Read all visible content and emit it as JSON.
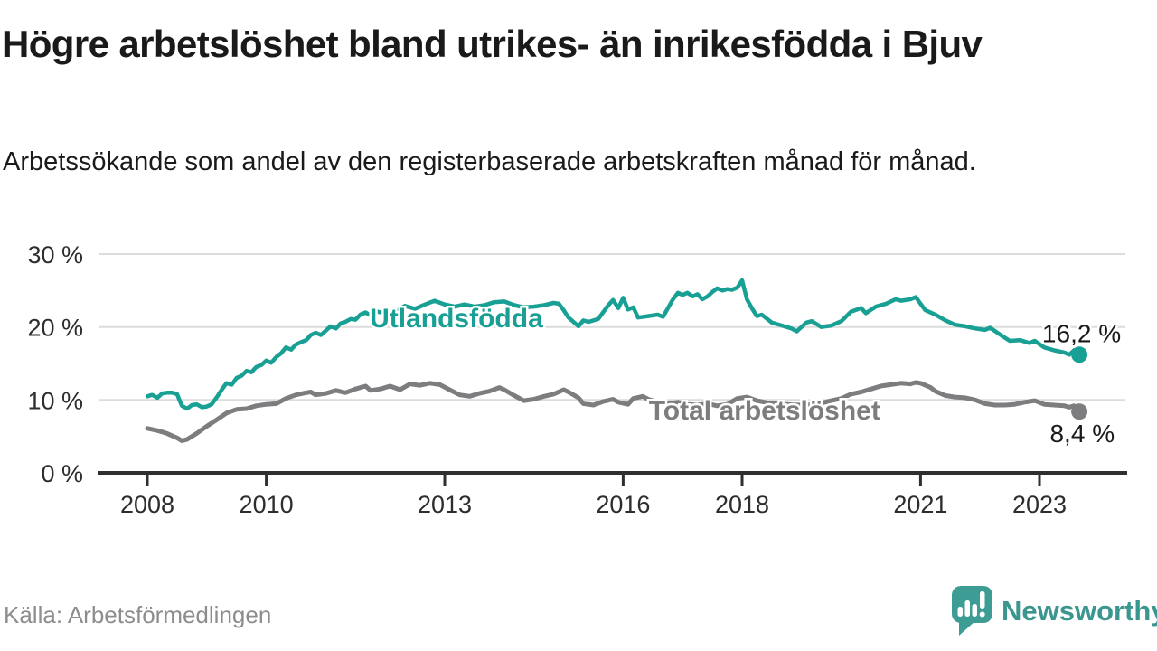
{
  "header": {
    "title": "Högre arbetslöshet bland utrikes- än inrikesfödda i Bjuv",
    "subtitle": "Arbetssökande som andel av den registerbaserade arbetskraften månad för månad."
  },
  "footer": {
    "source": "Källa: Arbetsförmedlingen",
    "brand": "Newsworthy",
    "logo_icon": "newsworthy-speech-bubble-bar-chart-icon"
  },
  "colors": {
    "series_utlandsfodda": "#18a094",
    "series_total": "#7d7d80",
    "title_text": "#1a1a1a",
    "axis_text": "#2d2d2d",
    "gridline": "#dcdcdc",
    "axis_line": "#2f2f2f",
    "source_text": "#8d8d8d",
    "brand_teal": "#3a968f"
  },
  "chart_data": {
    "type": "line",
    "unit": "%",
    "grid": "horizontal",
    "legend": "inline-labels",
    "x_range": [
      2008.0,
      2023.67
    ],
    "y_axis": {
      "range": [
        0,
        32
      ],
      "ticks": [
        {
          "value": 30,
          "label": "30 %"
        },
        {
          "value": 20,
          "label": "20 %"
        },
        {
          "value": 10,
          "label": "10 %"
        },
        {
          "value": 0,
          "label": "0 %"
        }
      ]
    },
    "x_axis": {
      "ticks": [
        {
          "x": 2008,
          "label": "2008"
        },
        {
          "x": 2010,
          "label": "2010"
        },
        {
          "x": 2013,
          "label": "2013"
        },
        {
          "x": 2016,
          "label": "2016"
        },
        {
          "x": 2018,
          "label": "2018"
        },
        {
          "x": 2021,
          "label": "2021"
        },
        {
          "x": 2023,
          "label": "2023"
        }
      ]
    },
    "series": [
      {
        "name": "utlandsfodda",
        "label": "Utlandsfödda",
        "color": "#18a094",
        "end_value": 16.2,
        "end_value_label": "16,2 %",
        "label_anchor": {
          "x": 2011.74,
          "value": 19.96
        },
        "points": [
          [
            2008.0,
            10.5
          ],
          [
            2008.08,
            10.7
          ],
          [
            2008.17,
            10.3
          ],
          [
            2008.25,
            10.9
          ],
          [
            2008.33,
            11.0
          ],
          [
            2008.42,
            11.0
          ],
          [
            2008.5,
            10.8
          ],
          [
            2008.58,
            9.2
          ],
          [
            2008.67,
            8.8
          ],
          [
            2008.75,
            9.3
          ],
          [
            2008.83,
            9.4
          ],
          [
            2008.92,
            9.0
          ],
          [
            2009.0,
            9.1
          ],
          [
            2009.08,
            9.4
          ],
          [
            2009.17,
            10.4
          ],
          [
            2009.25,
            11.4
          ],
          [
            2009.33,
            12.3
          ],
          [
            2009.42,
            12.1
          ],
          [
            2009.5,
            13.0
          ],
          [
            2009.58,
            13.3
          ],
          [
            2009.67,
            14.0
          ],
          [
            2009.75,
            13.8
          ],
          [
            2009.83,
            14.5
          ],
          [
            2009.92,
            14.8
          ],
          [
            2010.0,
            15.4
          ],
          [
            2010.08,
            15.1
          ],
          [
            2010.17,
            15.9
          ],
          [
            2010.25,
            16.4
          ],
          [
            2010.33,
            17.2
          ],
          [
            2010.42,
            16.9
          ],
          [
            2010.5,
            17.6
          ],
          [
            2010.58,
            17.9
          ],
          [
            2010.67,
            18.2
          ],
          [
            2010.75,
            18.9
          ],
          [
            2010.83,
            19.2
          ],
          [
            2010.92,
            18.9
          ],
          [
            2011.0,
            19.5
          ],
          [
            2011.08,
            20.1
          ],
          [
            2011.17,
            19.8
          ],
          [
            2011.25,
            20.5
          ],
          [
            2011.33,
            20.7
          ],
          [
            2011.42,
            21.1
          ],
          [
            2011.5,
            21.0
          ],
          [
            2011.58,
            21.7
          ],
          [
            2011.67,
            22.0
          ],
          [
            2011.75,
            21.6
          ],
          [
            2011.83,
            22.2
          ],
          [
            2011.92,
            22.0
          ],
          [
            2012.0,
            22.3
          ],
          [
            2012.17,
            22.1
          ],
          [
            2012.33,
            22.9
          ],
          [
            2012.5,
            22.5
          ],
          [
            2012.67,
            23.1
          ],
          [
            2012.83,
            23.6
          ],
          [
            2013.0,
            23.1
          ],
          [
            2013.17,
            22.8
          ],
          [
            2013.33,
            23.1
          ],
          [
            2013.5,
            22.8
          ],
          [
            2013.67,
            23.0
          ],
          [
            2013.83,
            23.4
          ],
          [
            2014.0,
            23.5
          ],
          [
            2014.17,
            23.0
          ],
          [
            2014.33,
            22.7
          ],
          [
            2014.5,
            22.8
          ],
          [
            2014.67,
            23.0
          ],
          [
            2014.83,
            23.3
          ],
          [
            2014.92,
            23.2
          ],
          [
            2015.0,
            22.3
          ],
          [
            2015.08,
            21.3
          ],
          [
            2015.25,
            20.1
          ],
          [
            2015.33,
            20.9
          ],
          [
            2015.42,
            20.7
          ],
          [
            2015.58,
            21.1
          ],
          [
            2015.75,
            23.0
          ],
          [
            2015.83,
            23.7
          ],
          [
            2015.92,
            22.6
          ],
          [
            2016.0,
            24.0
          ],
          [
            2016.08,
            22.4
          ],
          [
            2016.17,
            22.7
          ],
          [
            2016.25,
            21.3
          ],
          [
            2016.42,
            21.5
          ],
          [
            2016.58,
            21.7
          ],
          [
            2016.67,
            21.4
          ],
          [
            2016.83,
            23.7
          ],
          [
            2016.92,
            24.7
          ],
          [
            2017.0,
            24.4
          ],
          [
            2017.08,
            24.7
          ],
          [
            2017.17,
            24.2
          ],
          [
            2017.25,
            24.5
          ],
          [
            2017.33,
            23.8
          ],
          [
            2017.42,
            24.2
          ],
          [
            2017.5,
            24.8
          ],
          [
            2017.58,
            25.3
          ],
          [
            2017.67,
            25.0
          ],
          [
            2017.75,
            25.2
          ],
          [
            2017.83,
            25.1
          ],
          [
            2017.92,
            25.4
          ],
          [
            2018.0,
            26.4
          ],
          [
            2018.08,
            23.8
          ],
          [
            2018.17,
            22.5
          ],
          [
            2018.25,
            21.5
          ],
          [
            2018.33,
            21.7
          ],
          [
            2018.5,
            20.6
          ],
          [
            2018.67,
            20.2
          ],
          [
            2018.83,
            19.8
          ],
          [
            2018.92,
            19.4
          ],
          [
            2019.08,
            20.6
          ],
          [
            2019.17,
            20.8
          ],
          [
            2019.33,
            20.0
          ],
          [
            2019.5,
            20.2
          ],
          [
            2019.67,
            20.8
          ],
          [
            2019.83,
            22.1
          ],
          [
            2020.0,
            22.6
          ],
          [
            2020.08,
            21.9
          ],
          [
            2020.25,
            22.8
          ],
          [
            2020.42,
            23.2
          ],
          [
            2020.58,
            23.8
          ],
          [
            2020.67,
            23.6
          ],
          [
            2020.83,
            23.8
          ],
          [
            2020.92,
            24.1
          ],
          [
            2021.0,
            23.2
          ],
          [
            2021.08,
            22.3
          ],
          [
            2021.25,
            21.7
          ],
          [
            2021.42,
            20.9
          ],
          [
            2021.58,
            20.3
          ],
          [
            2021.75,
            20.1
          ],
          [
            2021.92,
            19.8
          ],
          [
            2022.08,
            19.6
          ],
          [
            2022.17,
            19.9
          ],
          [
            2022.33,
            19.0
          ],
          [
            2022.5,
            18.1
          ],
          [
            2022.67,
            18.2
          ],
          [
            2022.83,
            17.8
          ],
          [
            2022.92,
            18.1
          ],
          [
            2023.08,
            17.2
          ],
          [
            2023.25,
            16.8
          ],
          [
            2023.42,
            16.5
          ],
          [
            2023.5,
            16.2
          ],
          [
            2023.58,
            16.8
          ],
          [
            2023.67,
            16.2
          ]
        ]
      },
      {
        "name": "total-arbetsloshet",
        "label": "Total arbetslöshet",
        "color": "#7d7d80",
        "end_value": 8.4,
        "end_value_label": "8,4 %",
        "label_anchor": {
          "x": 2016.43,
          "value": 7.31
        },
        "points": [
          [
            2008.0,
            6.1
          ],
          [
            2008.17,
            5.8
          ],
          [
            2008.33,
            5.4
          ],
          [
            2008.5,
            4.8
          ],
          [
            2008.58,
            4.4
          ],
          [
            2008.67,
            4.6
          ],
          [
            2008.83,
            5.4
          ],
          [
            2009.0,
            6.4
          ],
          [
            2009.17,
            7.3
          ],
          [
            2009.33,
            8.2
          ],
          [
            2009.5,
            8.7
          ],
          [
            2009.67,
            8.8
          ],
          [
            2009.83,
            9.2
          ],
          [
            2010.0,
            9.4
          ],
          [
            2010.17,
            9.5
          ],
          [
            2010.33,
            10.2
          ],
          [
            2010.5,
            10.7
          ],
          [
            2010.67,
            11.0
          ],
          [
            2010.75,
            11.1
          ],
          [
            2010.83,
            10.7
          ],
          [
            2011.0,
            10.9
          ],
          [
            2011.17,
            11.3
          ],
          [
            2011.33,
            11.0
          ],
          [
            2011.5,
            11.5
          ],
          [
            2011.67,
            11.9
          ],
          [
            2011.75,
            11.3
          ],
          [
            2011.92,
            11.5
          ],
          [
            2012.08,
            11.9
          ],
          [
            2012.25,
            11.4
          ],
          [
            2012.42,
            12.2
          ],
          [
            2012.58,
            12.0
          ],
          [
            2012.75,
            12.3
          ],
          [
            2012.92,
            12.1
          ],
          [
            2013.08,
            11.4
          ],
          [
            2013.25,
            10.7
          ],
          [
            2013.42,
            10.5
          ],
          [
            2013.58,
            10.9
          ],
          [
            2013.75,
            11.2
          ],
          [
            2013.92,
            11.7
          ],
          [
            2014.0,
            11.4
          ],
          [
            2014.17,
            10.6
          ],
          [
            2014.33,
            9.9
          ],
          [
            2014.5,
            10.1
          ],
          [
            2014.67,
            10.5
          ],
          [
            2014.83,
            10.8
          ],
          [
            2015.0,
            11.4
          ],
          [
            2015.08,
            11.1
          ],
          [
            2015.25,
            10.3
          ],
          [
            2015.33,
            9.5
          ],
          [
            2015.5,
            9.3
          ],
          [
            2015.67,
            9.8
          ],
          [
            2015.83,
            10.1
          ],
          [
            2015.92,
            9.7
          ],
          [
            2016.08,
            9.4
          ],
          [
            2016.17,
            10.2
          ],
          [
            2016.33,
            10.5
          ],
          [
            2016.42,
            10.1
          ],
          [
            2016.58,
            9.7
          ],
          [
            2016.75,
            9.5
          ],
          [
            2016.92,
            9.7
          ],
          [
            2017.08,
            9.4
          ],
          [
            2017.25,
            9.3
          ],
          [
            2017.42,
            9.5
          ],
          [
            2017.58,
            9.2
          ],
          [
            2017.75,
            9.4
          ],
          [
            2017.92,
            10.2
          ],
          [
            2018.08,
            10.4
          ],
          [
            2018.25,
            9.9
          ],
          [
            2018.5,
            9.5
          ],
          [
            2018.75,
            9.4
          ],
          [
            2019.0,
            9.3
          ],
          [
            2019.25,
            9.4
          ],
          [
            2019.5,
            9.9
          ],
          [
            2019.67,
            10.2
          ],
          [
            2019.83,
            10.8
          ],
          [
            2020.0,
            11.1
          ],
          [
            2020.17,
            11.5
          ],
          [
            2020.33,
            11.9
          ],
          [
            2020.5,
            12.1
          ],
          [
            2020.67,
            12.3
          ],
          [
            2020.83,
            12.2
          ],
          [
            2020.92,
            12.4
          ],
          [
            2021.0,
            12.3
          ],
          [
            2021.17,
            11.7
          ],
          [
            2021.25,
            11.2
          ],
          [
            2021.42,
            10.6
          ],
          [
            2021.58,
            10.4
          ],
          [
            2021.75,
            10.3
          ],
          [
            2021.92,
            10.0
          ],
          [
            2022.08,
            9.5
          ],
          [
            2022.25,
            9.3
          ],
          [
            2022.42,
            9.3
          ],
          [
            2022.58,
            9.4
          ],
          [
            2022.75,
            9.7
          ],
          [
            2022.92,
            9.9
          ],
          [
            2023.08,
            9.4
          ],
          [
            2023.25,
            9.3
          ],
          [
            2023.42,
            9.2
          ],
          [
            2023.5,
            9.0
          ],
          [
            2023.58,
            9.2
          ],
          [
            2023.67,
            8.4
          ]
        ]
      }
    ]
  }
}
